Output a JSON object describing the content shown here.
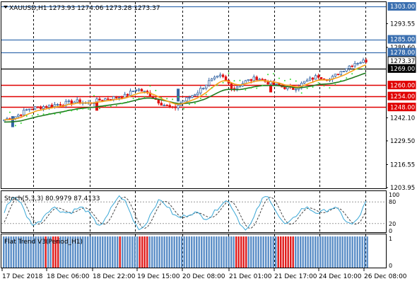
{
  "colors": {
    "bg": "#ffffff",
    "grid": "#000000",
    "bull": "#3465a4",
    "bear": "#e01010",
    "ema_fast": "#f4a21a",
    "ema_slow": "#1e7a1e",
    "psar": "#33dd33",
    "blue_level": "#3a6fb0",
    "red_level": "#e00000",
    "stoch_main": "#3aa7d6",
    "stoch_signal": "#333333",
    "hist_blue": "#5b8ec7",
    "hist_red": "#e01b1b"
  },
  "header": {
    "symbol_caption": "XAUUSD,H1",
    "ohlc_caption": "1273.93 1274.06 1273.28 1273.37"
  },
  "price_axis": {
    "ticks": [
      {
        "value": 1293.55,
        "label": "1293.55"
      },
      {
        "value": 1280.6,
        "label": "1280.60"
      },
      {
        "value": 1242.1,
        "label": "1242.10"
      },
      {
        "value": 1229.5,
        "label": "1229.50"
      },
      {
        "value": 1216.55,
        "label": "1216.55"
      },
      {
        "value": 1203.95,
        "label": "1203.95"
      }
    ],
    "boxes": [
      {
        "value": 1303.0,
        "label": "1303.00",
        "kind": "blue"
      },
      {
        "value": 1285.0,
        "label": "1285.00",
        "kind": "blue"
      },
      {
        "value": 1278.0,
        "label": "1278.00",
        "kind": "blue"
      },
      {
        "value": 1273.37,
        "label": "1273.37",
        "kind": "price"
      },
      {
        "value": 1269.0,
        "label": "1269.00",
        "kind": "black"
      },
      {
        "value": 1260.0,
        "label": "1260.00",
        "kind": "red"
      },
      {
        "value": 1254.0,
        "label": "1254.00",
        "kind": "red"
      },
      {
        "value": 1248.0,
        "label": "1248.00",
        "kind": "red"
      }
    ]
  },
  "time_axis": {
    "labels": [
      "17 Dec 2018",
      "18 Dec 06:00",
      "18 Dec 22:00",
      "19 Dec 15:00",
      "20 Dec 08:00",
      "21 Dec 01:00",
      "21 Dec 17:00",
      "24 Dec 10:00",
      "26 Dec 08:00"
    ]
  },
  "stoch_panel": {
    "caption": "Stoch(5,3,3) 80.9979 87.4133",
    "levels": [
      {
        "value": 100,
        "label": "100"
      },
      {
        "value": 80,
        "label": "80"
      },
      {
        "value": 20,
        "label": "20"
      },
      {
        "value": 0,
        "label": "0"
      }
    ]
  },
  "trend_panel": {
    "caption": "Flat Trend V3(Period_H1)",
    "levels": [
      {
        "value": 1,
        "label": "1"
      },
      {
        "value": 0,
        "label": "0"
      }
    ]
  },
  "chart_data": {
    "type": "candlestick",
    "symbol": "XAUUSD",
    "timeframe": "H1",
    "ohlc": {
      "open": 1273.93,
      "high": 1274.06,
      "low": 1273.28,
      "close": 1273.37
    },
    "ylim": [
      1203.95,
      1303.0
    ],
    "horizontal_levels": {
      "resistance": [
        1303.0,
        1285.0,
        1278.0
      ],
      "pivot": 1269.0,
      "support": [
        1260.0,
        1254.0,
        1248.0
      ]
    },
    "approx_close_path": [
      1241,
      1243,
      1247,
      1248,
      1249,
      1250,
      1251,
      1250,
      1252,
      1253,
      1254,
      1258,
      1255,
      1250,
      1247,
      1252,
      1256,
      1262,
      1265,
      1258,
      1262,
      1264,
      1261,
      1259,
      1258,
      1262,
      1265,
      1263,
      1268,
      1272,
      1273.37
    ],
    "stochastic": {
      "main": 80.9979,
      "signal": 87.4133
    }
  }
}
